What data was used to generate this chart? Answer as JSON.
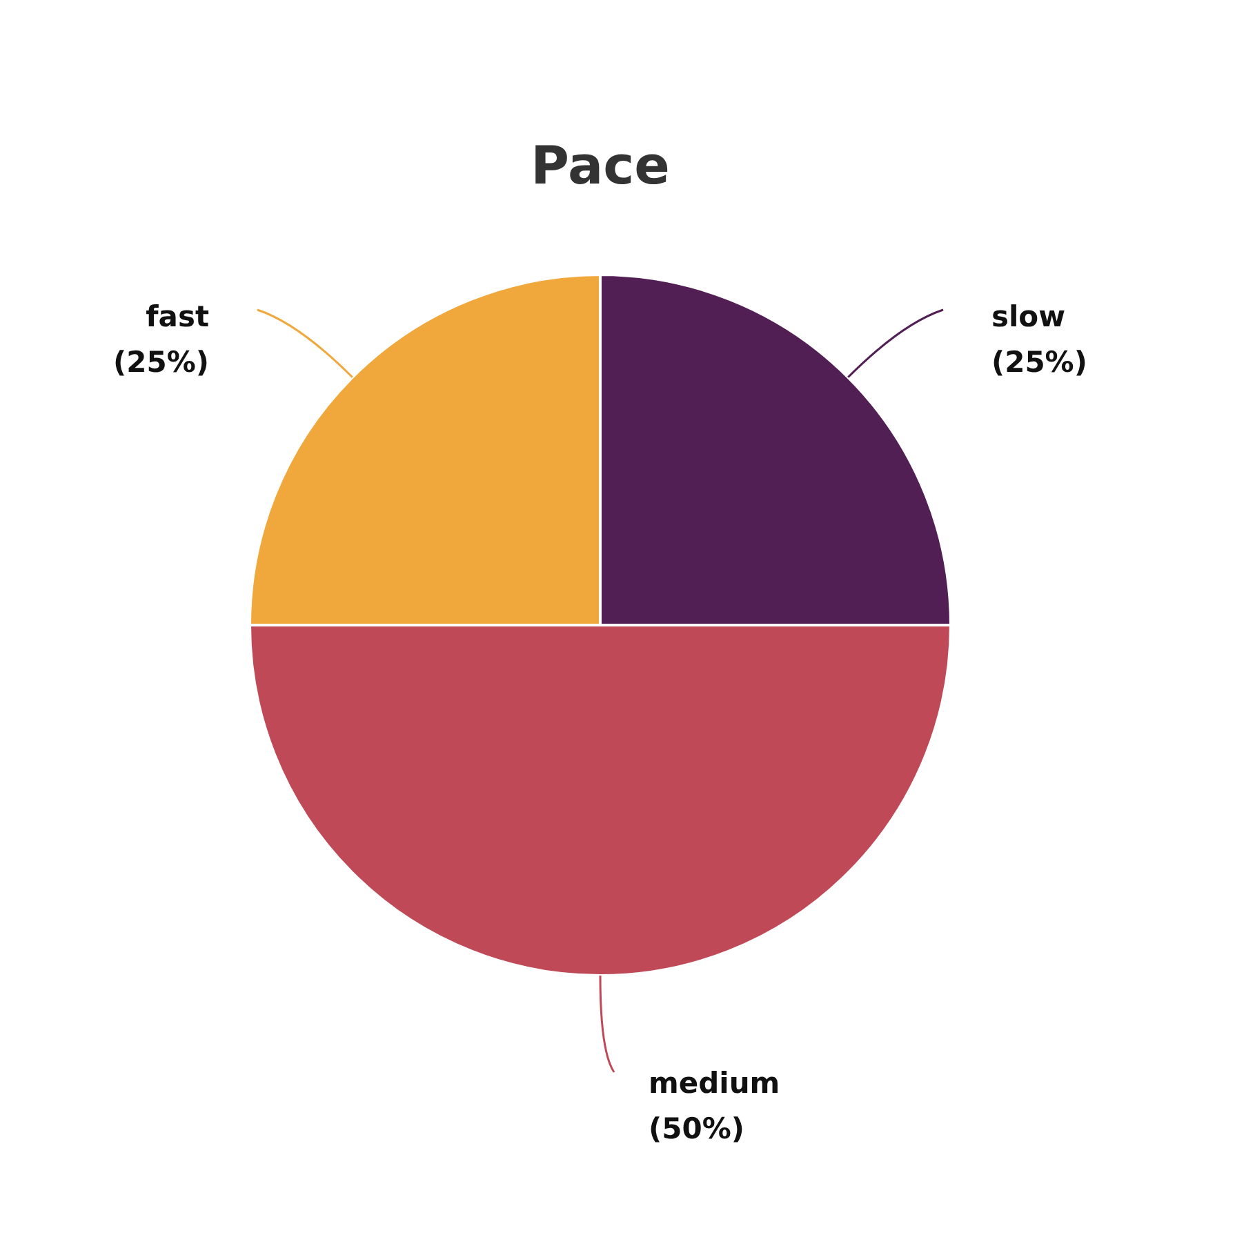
{
  "chart_data": {
    "type": "pie",
    "title": "Pace",
    "categories": [
      "slow",
      "medium",
      "fast"
    ],
    "values": [
      25,
      50,
      25
    ],
    "colors": [
      "#521f55",
      "#c04957",
      "#f0a83c"
    ],
    "value_labels": [
      "(25%)",
      "(50%)",
      "(25%)"
    ],
    "legend": false
  }
}
